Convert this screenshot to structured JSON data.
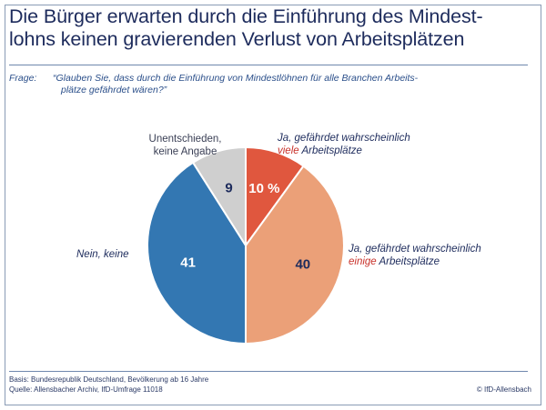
{
  "title_line1": "Die Bürger erwarten durch die Einführung des Mindest-",
  "title_line2": "lohns keinen gravierenden Verlust von Arbeitsplätzen",
  "question": {
    "label": "Frage:",
    "line1": "“Glauben Sie, dass durch die Einführung von Mindestlöhnen für alle Branchen Arbeits-",
    "line2": "plätze gefährdet wären?”"
  },
  "chart_data": {
    "type": "pie",
    "unit": "%",
    "slices": [
      {
        "id": "viele",
        "value": 10,
        "value_label": "10 %",
        "color": "#e0573e",
        "label_pre": "Ja, gefährdet wahrscheinlich",
        "label_em": "viele",
        "label_post": "Arbeitsplätze"
      },
      {
        "id": "einige",
        "value": 40,
        "value_label": "40",
        "color": "#eba078",
        "label_pre": "Ja, gefährdet wahrscheinlich",
        "label_em": "einige",
        "label_post": "Arbeitsplätze"
      },
      {
        "id": "nein",
        "value": 41,
        "value_label": "41",
        "color": "#3377b2",
        "label_text": "Nein, keine"
      },
      {
        "id": "unentschieden",
        "value": 9,
        "value_label": "9",
        "color": "#cfcfcf",
        "label_line1": "Unentschieden,",
        "label_line2": "keine Angabe"
      }
    ],
    "value_label_colors": {
      "viele": "#ffffff",
      "einige": "#1d2b5c",
      "nein": "#ffffff",
      "unentschieden": "#1d2b5c"
    }
  },
  "footer": {
    "basis": "Basis: Bundesrepublik Deutschland, Bevölkerung ab 16 Jahre",
    "quelle": "Quelle: Allensbacher Archiv, IfD-Umfrage 11018",
    "copyright": "© IfD-Allensbach"
  }
}
